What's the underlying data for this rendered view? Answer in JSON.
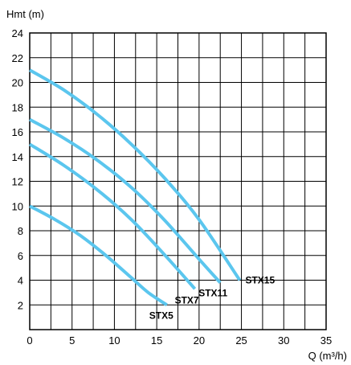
{
  "chart_data": {
    "type": "line",
    "ylabel": "Hmt (m)",
    "xlabel": "Q (m³/h)",
    "xlim": [
      0,
      35
    ],
    "ylim": [
      0,
      24
    ],
    "x_ticks": [
      "0",
      "5",
      "10",
      "15",
      "20",
      "25",
      "30",
      "35"
    ],
    "y_ticks": [
      "2",
      "4",
      "6",
      "8",
      "10",
      "12",
      "14",
      "16",
      "18",
      "20",
      "22",
      "24"
    ],
    "grid": true,
    "colors": {
      "series": "#5bc6ee",
      "grid": "#000000"
    },
    "series": [
      {
        "name": "STX5",
        "x": [
          0,
          3,
          6,
          9,
          12,
          14,
          16.2
        ],
        "y": [
          10,
          8.9,
          7.6,
          6.0,
          4.2,
          3.0,
          2.0
        ]
      },
      {
        "name": "STX7",
        "x": [
          0,
          4,
          8,
          12,
          16,
          19.5
        ],
        "y": [
          15,
          13.3,
          11.3,
          8.9,
          6.0,
          3.3
        ]
      },
      {
        "name": "STX11",
        "x": [
          0,
          4,
          8,
          12,
          16,
          20,
          22.5
        ],
        "y": [
          17,
          15.5,
          13.7,
          11.5,
          8.8,
          5.7,
          3.8
        ]
      },
      {
        "name": "STX15",
        "x": [
          0,
          4,
          8,
          12,
          16,
          20,
          24.8
        ],
        "y": [
          21,
          19.4,
          17.4,
          15.0,
          12.2,
          8.9,
          4.0
        ]
      }
    ]
  }
}
